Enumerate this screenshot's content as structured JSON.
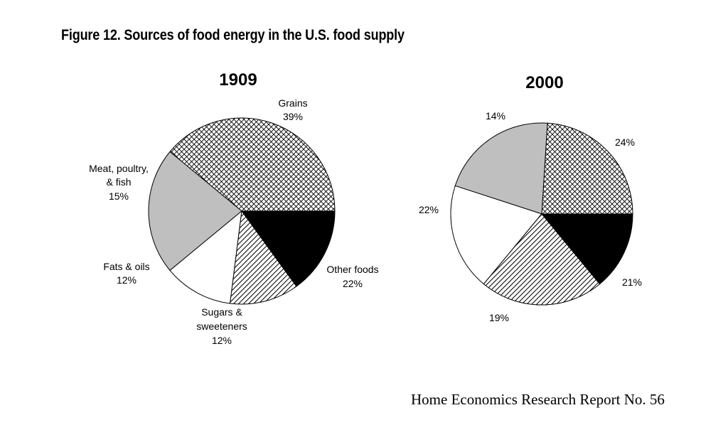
{
  "figure": {
    "title": "Figure 12. Sources of food energy in the U.S. food supply"
  },
  "footer": "Home Economics Research Report No. 56",
  "chart_data": [
    {
      "type": "pie",
      "title": "1909",
      "slices": [
        {
          "label": "Grains",
          "value": 39,
          "pct_text": "39%",
          "fill": "crosshatch"
        },
        {
          "label": "Other foods",
          "value": 22,
          "pct_text": "22%",
          "fill": "#bfbfbf"
        },
        {
          "label": "Sugars & sweeteners",
          "value": 12,
          "pct_text": "12%",
          "fill": "#ffffff"
        },
        {
          "label": "Fats & oils",
          "value": 12,
          "pct_text": "12%",
          "fill": "diagonal"
        },
        {
          "label": "Meat, poultry, & fish",
          "value": 15,
          "pct_text": "15%",
          "fill": "#000000"
        }
      ]
    },
    {
      "type": "pie",
      "title": "2000",
      "slices": [
        {
          "value": 24,
          "pct_text": "24%",
          "fill": "crosshatch"
        },
        {
          "value": 21,
          "pct_text": "21%",
          "fill": "#bfbfbf"
        },
        {
          "value": 19,
          "pct_text": "19%",
          "fill": "#ffffff"
        },
        {
          "value": 22,
          "pct_text": "22%",
          "fill": "diagonal"
        },
        {
          "value": 14,
          "pct_text": "14%",
          "fill": "#000000"
        }
      ]
    }
  ]
}
